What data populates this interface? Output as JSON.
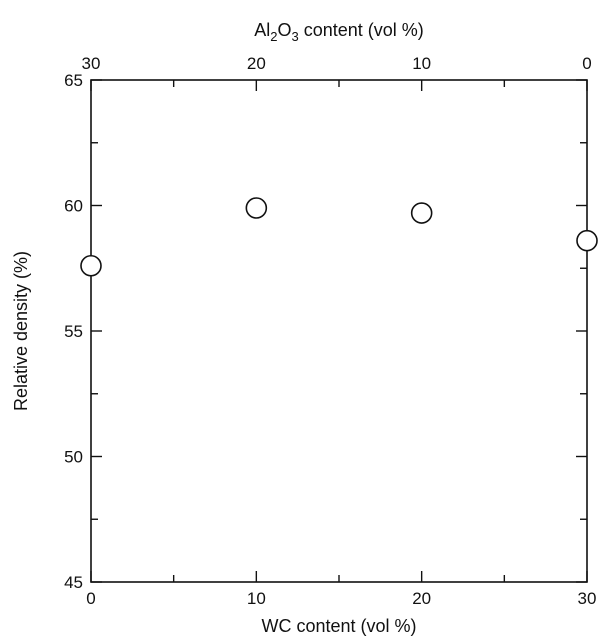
{
  "chart_data": {
    "type": "scatter",
    "title": "",
    "xlabel": "WC content (vol %)",
    "ylabel": "Relative density (%)",
    "x2label_parts": {
      "pre": "Al",
      "sub1": "2",
      "mid": "O",
      "sub2": "3",
      "post": " content (vol %)"
    },
    "xlim": [
      0,
      30
    ],
    "ylim": [
      45,
      65
    ],
    "x_major_ticks": [
      0,
      10,
      20,
      30
    ],
    "x_minor_ticks": [
      5,
      15,
      25
    ],
    "y_major_ticks": [
      45,
      50,
      55,
      60,
      65
    ],
    "y_minor_ticks": [
      47.5,
      52.5,
      57.5,
      62.5
    ],
    "x2_tick_labels": [
      {
        "x": 0,
        "label": "30"
      },
      {
        "x": 10,
        "label": "20"
      },
      {
        "x": 20,
        "label": "10"
      },
      {
        "x": 30,
        "label": "0"
      }
    ],
    "grid": false,
    "marker": "open-circle",
    "series": [
      {
        "x": [
          0,
          10,
          20,
          30
        ],
        "y": [
          57.6,
          59.9,
          59.7,
          58.6
        ]
      }
    ]
  }
}
